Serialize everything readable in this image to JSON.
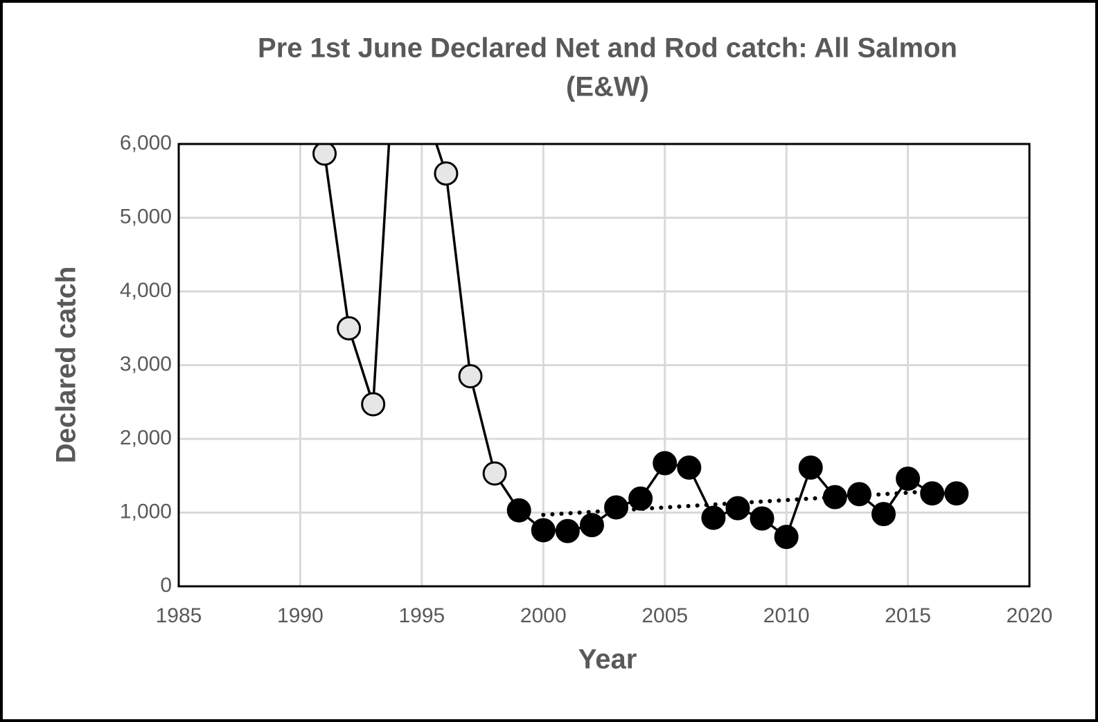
{
  "chart_data": {
    "type": "line",
    "title": [
      "Pre 1st June Declared Net and Rod catch: All Salmon",
      "(E&W)"
    ],
    "xlabel": "Year",
    "ylabel": "Declared catch",
    "x": [
      1991,
      1992,
      1993,
      1994,
      1995,
      1996,
      1997,
      1998,
      1999,
      2000,
      2001,
      2002,
      2003,
      2004,
      2005,
      2006,
      2007,
      2008,
      2009,
      2010,
      2011,
      2012,
      2013,
      2014,
      2015,
      2016,
      2017
    ],
    "series": [
      {
        "color": "#000000",
        "marker_colors": [
          "#e6e6e6",
          "#e6e6e6",
          "#e6e6e6",
          "#e6e6e6",
          "#e6e6e6",
          "#e6e6e6",
          "#e6e6e6",
          "#e6e6e6",
          "#000000",
          "#000000",
          "#000000",
          "#000000",
          "#000000",
          "#000000",
          "#000000",
          "#000000",
          "#000000",
          "#000000",
          "#000000",
          "#000000",
          "#000000",
          "#000000",
          "#000000",
          "#000000",
          "#000000",
          "#000000",
          "#000000"
        ],
        "values": [
          5870,
          3500,
          2470,
          7900,
          6600,
          5600,
          2850,
          1530,
          1030,
          760,
          750,
          830,
          1070,
          1190,
          1670,
          1610,
          930,
          1060,
          920,
          670,
          1610,
          1210,
          1250,
          980,
          1460,
          1260,
          1260
        ]
      }
    ],
    "trendline": {
      "color": "#000000",
      "x": [
        2000,
        2016
      ],
      "values": [
        970,
        1290
      ]
    },
    "xlim": [
      1985,
      2020
    ],
    "xticks": [
      1985,
      1990,
      1995,
      2000,
      2005,
      2010,
      2015,
      2020
    ],
    "ylim": [
      0,
      6000
    ],
    "yticks": [
      0,
      {
        "value": 1000,
        "label": "1,000"
      },
      {
        "value": 2000,
        "label": "2,000"
      },
      {
        "value": 3000,
        "label": "3,000"
      },
      {
        "value": 4000,
        "label": "4,000"
      },
      {
        "value": 5000,
        "label": "5,000"
      },
      {
        "value": 6000,
        "label": "6,000"
      }
    ],
    "grid": true
  }
}
